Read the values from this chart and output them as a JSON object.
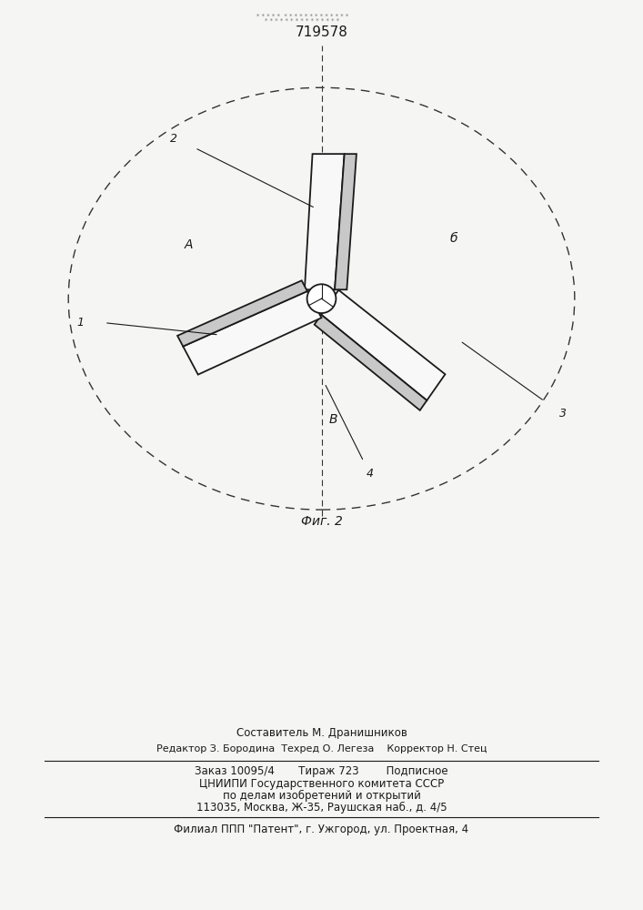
{
  "bg_color": "#f5f5f3",
  "page_bg": "#e8e8e4",
  "line_color": "#1a1a1a",
  "dashed_color": "#333333",
  "fill_white": "#f8f8f8",
  "fill_gray": "#c8c8c8",
  "title_number": "719578",
  "fig_caption": "Фиг. 2",
  "label_A": "А",
  "label_b": "б",
  "label_V": "В",
  "bottom_line1": "Составитель М. Дранишников",
  "bottom_line2": "Редактор З. Бородина  Техред О. Легеза    Корректор Н. Стец",
  "bottom_line3": "Заказ 10095/4       Тираж 723        Подписное",
  "bottom_line4": "ЦНИИПИ Государственного комитета СССР",
  "bottom_line5": "по делам изобретений и открытий",
  "bottom_line6": "113035, Москва, Ж-35, Раушская наб., д. 4/5",
  "bottom_line7": "Филиал ППП \"Патент\", г. Ужгород, ул. Проектная, 4"
}
